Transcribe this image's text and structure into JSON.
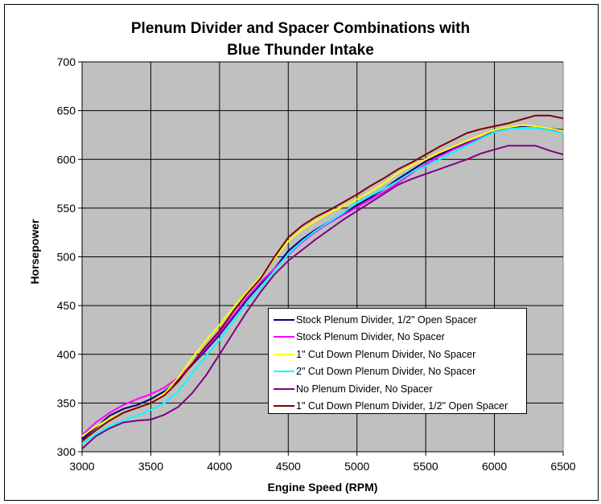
{
  "chart_data": {
    "type": "line",
    "title": "Plenum Divider and Spacer Combinations with Blue Thunder Intake",
    "title_lines": [
      "Plenum Divider and Spacer Combinations with",
      "Blue Thunder Intake"
    ],
    "xlabel": "Engine Speed (RPM)",
    "ylabel": "Horsepower",
    "xlim": [
      3000,
      6500
    ],
    "ylim": [
      300,
      700
    ],
    "xticks": [
      3000,
      3500,
      4000,
      4500,
      5000,
      5500,
      6000,
      6500
    ],
    "yticks": [
      300,
      350,
      400,
      450,
      500,
      550,
      600,
      650,
      700
    ],
    "grid": true,
    "legend_position": "inside-lower-right",
    "x": [
      3000,
      3100,
      3200,
      3300,
      3400,
      3500,
      3600,
      3700,
      3800,
      3900,
      4000,
      4100,
      4200,
      4300,
      4400,
      4500,
      4600,
      4700,
      4800,
      4900,
      5000,
      5100,
      5200,
      5300,
      5400,
      5500,
      5600,
      5700,
      5800,
      5900,
      6000,
      6100,
      6200,
      6300,
      6400,
      6500
    ],
    "series": [
      {
        "name": "Stock Plenum Divider, 1/2\" Open Spacer",
        "color": "#000080",
        "values": [
          313,
          325,
          337,
          344,
          348,
          354,
          362,
          374,
          389,
          404,
          420,
          438,
          456,
          472,
          488,
          506,
          518,
          528,
          536,
          544,
          553,
          561,
          570,
          580,
          589,
          598,
          605,
          611,
          617,
          622,
          629,
          633,
          634,
          634,
          632,
          630
        ]
      },
      {
        "name": "Stock Plenum Divider, No Spacer",
        "color": "#FF00FF",
        "values": [
          317,
          330,
          340,
          348,
          354,
          359,
          366,
          376,
          390,
          406,
          422,
          440,
          458,
          474,
          488,
          502,
          515,
          526,
          535,
          543,
          551,
          559,
          567,
          576,
          586,
          595,
          603,
          610,
          616,
          622,
          628,
          631,
          632,
          632,
          631,
          629
        ]
      },
      {
        "name": "1\" Cut Down Plenum Divider, No Spacer",
        "color": "#FFFF00",
        "values": [
          316,
          326,
          334,
          340,
          345,
          350,
          360,
          376,
          396,
          414,
          430,
          448,
          464,
          480,
          498,
          516,
          528,
          537,
          545,
          552,
          559,
          567,
          576,
          586,
          594,
          600,
          607,
          613,
          619,
          625,
          630,
          633,
          635,
          634,
          632,
          629
        ]
      },
      {
        "name": "2\" Cut Down Plenum Divider, No Spacer",
        "color": "#00FFFF",
        "values": [
          308,
          318,
          326,
          332,
          337,
          343,
          350,
          362,
          380,
          398,
          415,
          434,
          452,
          468,
          486,
          503,
          516,
          527,
          536,
          545,
          556,
          563,
          570,
          578,
          587,
          593,
          600,
          607,
          614,
          621,
          628,
          631,
          632,
          632,
          630,
          626
        ]
      },
      {
        "name": "No Plenum Divider, No Spacer",
        "color": "#800080",
        "values": [
          303,
          316,
          324,
          330,
          332,
          333,
          338,
          346,
          360,
          378,
          400,
          422,
          444,
          464,
          482,
          496,
          507,
          518,
          528,
          538,
          547,
          556,
          565,
          574,
          580,
          585,
          590,
          595,
          600,
          606,
          610,
          614,
          614,
          614,
          609,
          605
        ]
      },
      {
        "name": "1\" Cut Down Plenum Divider, 1/2\" Open Spacer",
        "color": "#800000",
        "values": [
          311,
          322,
          332,
          340,
          345,
          350,
          358,
          372,
          390,
          408,
          424,
          444,
          462,
          478,
          500,
          520,
          532,
          541,
          548,
          556,
          564,
          573,
          581,
          590,
          597,
          605,
          613,
          620,
          627,
          631,
          634,
          637,
          641,
          645,
          645,
          642
        ]
      }
    ]
  }
}
